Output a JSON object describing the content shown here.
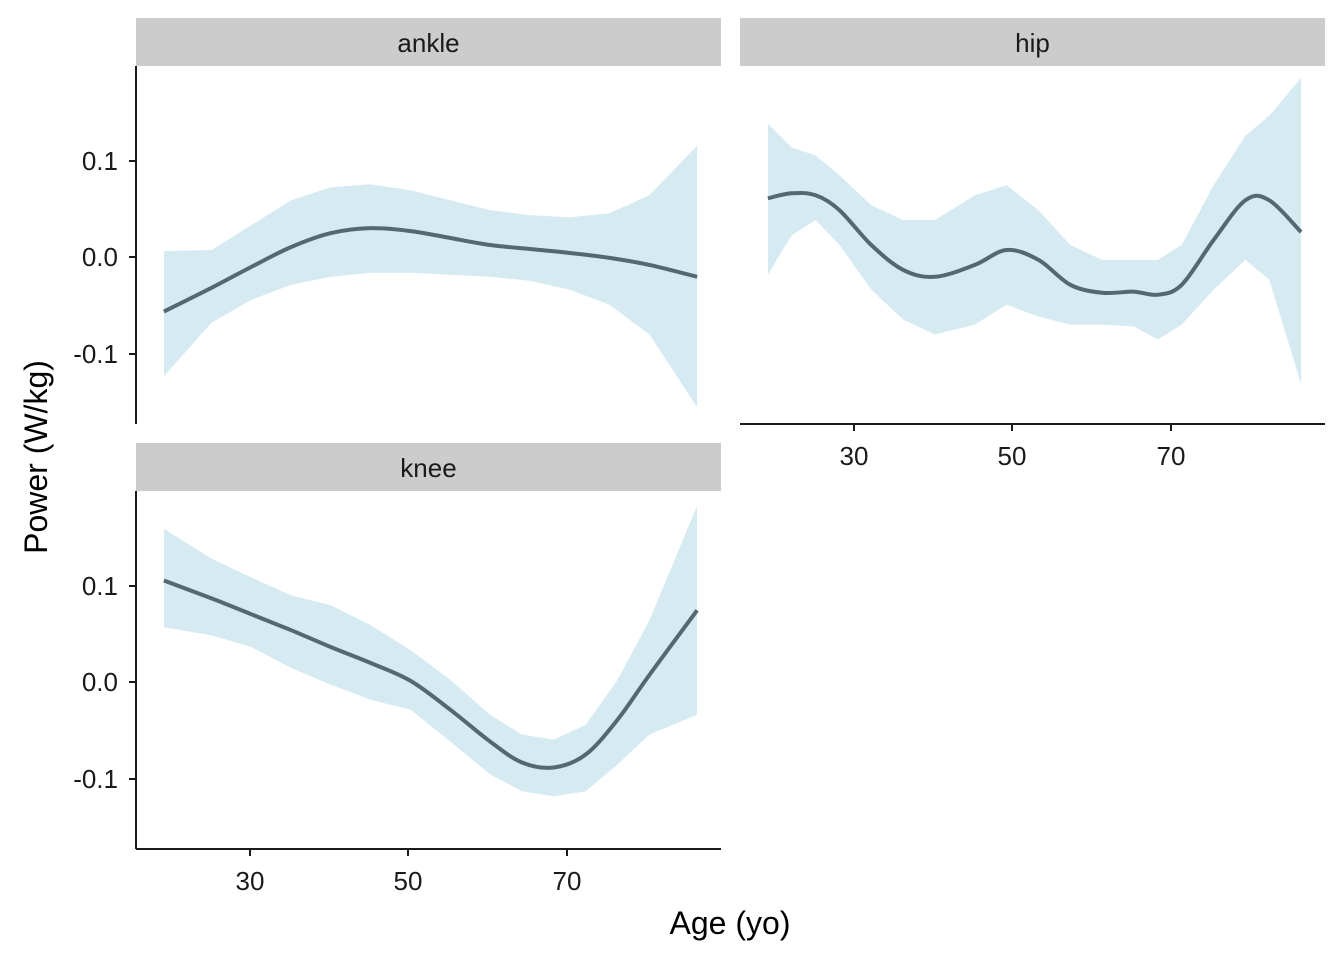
{
  "chart_data": {
    "type": "line",
    "facets": [
      "ankle",
      "hip",
      "knee"
    ],
    "xlabel": "Age (yo)",
    "ylabel": "Power (W/kg)",
    "xticks": [
      30,
      50,
      70
    ],
    "yticks": [
      -0.1,
      0.0,
      0.1
    ],
    "ytick_labels": [
      "-0.1",
      "0.0",
      "0.1"
    ],
    "xlim": [
      15.5,
      89
    ],
    "ylim": [
      -0.17,
      0.19
    ],
    "colors": {
      "line": "#546873",
      "ribbon": "#d6eaf2",
      "strip": "#cccccc",
      "axis": "#1a1a1a"
    },
    "panels": [
      {
        "name": "ankle",
        "x": [
          19,
          25,
          30,
          35,
          40,
          45,
          50,
          55,
          60,
          65,
          70,
          75,
          80,
          86
        ],
        "y": [
          -0.057,
          -0.033,
          -0.012,
          0.008,
          0.022,
          0.027,
          0.024,
          0.017,
          0.01,
          0.006,
          0.002,
          -0.003,
          -0.01,
          -0.022
        ],
        "lower": [
          -0.122,
          -0.068,
          -0.045,
          -0.03,
          -0.022,
          -0.018,
          -0.018,
          -0.02,
          -0.022,
          -0.026,
          -0.035,
          -0.05,
          -0.08,
          -0.153
        ],
        "upper": [
          0.004,
          0.005,
          0.03,
          0.055,
          0.068,
          0.071,
          0.065,
          0.055,
          0.045,
          0.04,
          0.038,
          0.042,
          0.06,
          0.11
        ]
      },
      {
        "name": "hip",
        "x": [
          19,
          22,
          25,
          28,
          32,
          36,
          40,
          45,
          49,
          53,
          57,
          61,
          65,
          68,
          71,
          75,
          79,
          82,
          86
        ],
        "y": [
          0.057,
          0.062,
          0.06,
          0.045,
          0.01,
          -0.015,
          -0.022,
          -0.01,
          0.005,
          -0.005,
          -0.03,
          -0.038,
          -0.037,
          -0.04,
          -0.03,
          0.015,
          0.055,
          0.055,
          0.023
        ],
        "lower": [
          -0.02,
          0.02,
          0.035,
          0.01,
          -0.035,
          -0.065,
          -0.08,
          -0.07,
          -0.05,
          -0.062,
          -0.07,
          -0.07,
          -0.072,
          -0.085,
          -0.07,
          -0.035,
          -0.005,
          -0.025,
          -0.13
        ],
        "upper": [
          0.132,
          0.108,
          0.1,
          0.08,
          0.05,
          0.035,
          0.035,
          0.06,
          0.07,
          0.045,
          0.01,
          -0.005,
          -0.005,
          -0.005,
          0.01,
          0.07,
          0.12,
          0.14,
          0.178
        ]
      },
      {
        "name": "knee",
        "x": [
          19,
          25,
          30,
          35,
          40,
          45,
          50,
          55,
          60,
          64,
          68,
          72,
          76,
          80,
          86
        ],
        "y": [
          0.1,
          0.082,
          0.066,
          0.05,
          0.033,
          0.017,
          -0.001,
          -0.03,
          -0.062,
          -0.083,
          -0.088,
          -0.075,
          -0.04,
          0.005,
          0.07
        ],
        "lower": [
          0.053,
          0.045,
          0.033,
          0.012,
          -0.005,
          -0.02,
          -0.03,
          -0.062,
          -0.095,
          -0.112,
          -0.117,
          -0.112,
          -0.085,
          -0.055,
          -0.035
        ],
        "upper": [
          0.152,
          0.122,
          0.103,
          0.085,
          0.075,
          0.055,
          0.03,
          0.0,
          -0.035,
          -0.055,
          -0.06,
          -0.045,
          0.0,
          0.06,
          0.175
        ]
      }
    ]
  }
}
